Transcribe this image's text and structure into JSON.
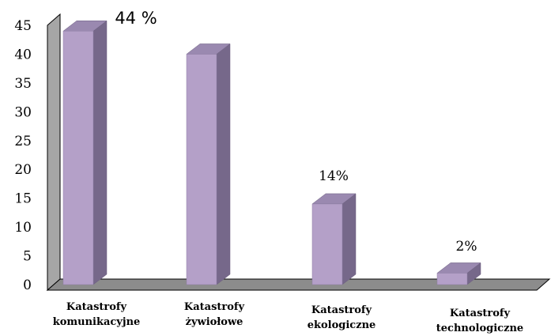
{
  "chart_data": {
    "type": "bar",
    "categories": [
      "Katastrofy komunikacyjne",
      "Katastrofy żywiołowe",
      "Katastrofy ekologiczne",
      "Katastrofy technologiczne"
    ],
    "category_lines": [
      [
        "Katastrofy",
        "komunikacyjne"
      ],
      [
        "Katastrofy",
        "żywiołowe"
      ],
      [
        "Katastrofy",
        "ekologiczne"
      ],
      [
        "Katastrofy",
        "technologiczne"
      ]
    ],
    "values": [
      44,
      40,
      14,
      2
    ],
    "annotations": [
      "44 %",
      "",
      "14%",
      "2%"
    ],
    "ylim": [
      0,
      45
    ],
    "yticks": [
      0,
      5,
      10,
      15,
      20,
      25,
      30,
      35,
      40,
      45
    ],
    "title": "",
    "xlabel": "",
    "ylabel": "",
    "grid": false,
    "colors": {
      "bar_front": "#b4a0c8",
      "bar_side": "#76688a",
      "bar_top": "#9a89b0",
      "wall": "#a6a6a6",
      "floor": "#8c8c8c"
    }
  }
}
